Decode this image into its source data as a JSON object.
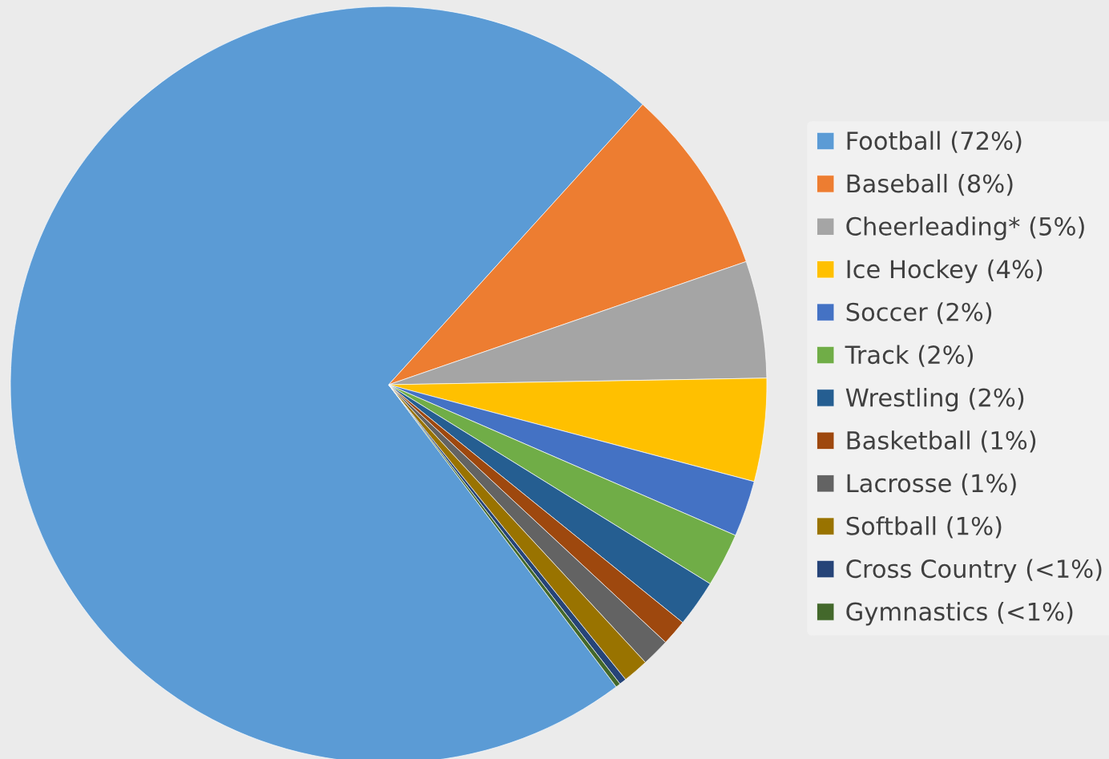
{
  "chart_data": {
    "type": "pie",
    "categories": [
      "Football (72%)",
      "Baseball (8%)",
      "Cheerleading* (5%)",
      "Ice Hockey (4%)",
      "Soccer (2%)",
      "Track (2%)",
      "Wrestling (2%)",
      "Basketball (1%)",
      "Lacrosse (1%)",
      "Softball (1%)",
      "Cross Country (<1%)",
      "Gymnastics (<1%)"
    ],
    "values": [
      72.0,
      8.0,
      5.0,
      4.4,
      2.4,
      2.3,
      2.0,
      1.1,
      1.2,
      1.1,
      0.3,
      0.2
    ],
    "colors": [
      "#5b9bd5",
      "#ed7d31",
      "#a5a5a5",
      "#ffc000",
      "#4472c4",
      "#70ad47",
      "#255e91",
      "#9e480e",
      "#636363",
      "#997300",
      "#264478",
      "#43682b"
    ],
    "legend": "right"
  }
}
